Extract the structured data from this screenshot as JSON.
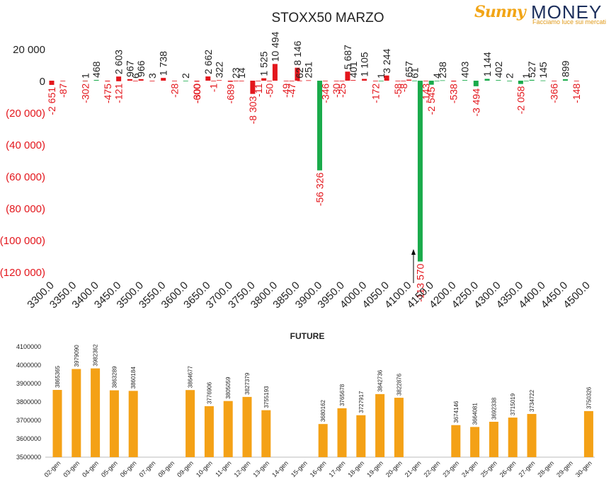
{
  "logo": {
    "part1": "Sunny",
    "part2": "MONEY",
    "tagline": "Facciamo luce sui mercati"
  },
  "colors": {
    "positive": "#1aab4b",
    "negative": "#e3161c",
    "label_negative": "#e3161c",
    "label_positive": "#222222",
    "future_bar": "#f4a116"
  },
  "chart_data": [
    {
      "type": "bar",
      "title": "STOXX50 MARZO",
      "ylim": [
        -120000,
        25000
      ],
      "yticks": [
        20000,
        0,
        -20000,
        -40000,
        -60000,
        -80000,
        -100000,
        -120000
      ],
      "ytick_labels": [
        "20 000",
        "0",
        "(20 000)",
        "(40 000)",
        "(60 000)",
        "(80 000)",
        "(100 000)",
        "(120 000)"
      ],
      "xtick_labels": [
        "3300.0",
        "3350.0",
        "3400.0",
        "3450.0",
        "3500.0",
        "3550.0",
        "3600.0",
        "3650.0",
        "3700.0",
        "3750.0",
        "3800.0",
        "3850.0",
        "3900.0",
        "3950.0",
        "4000.0",
        "4050.0",
        "4100.0",
        "4150.0",
        "4200.0",
        "4250.0",
        "4300.0",
        "4350.0",
        "4400.0",
        "4450.0",
        "4500.0"
      ],
      "xmin": 3300,
      "xmax": 4500,
      "bars": [
        {
          "x": 3300,
          "v": -2651,
          "label": "-2 651"
        },
        {
          "x": 3325,
          "v": -87,
          "label": "-87"
        },
        {
          "x": 3375,
          "v": 1,
          "label": "1"
        },
        {
          "x": 3375,
          "v": -302,
          "label": "-302"
        },
        {
          "x": 3400,
          "v": 468,
          "label": "468"
        },
        {
          "x": 3425,
          "v": -475,
          "label": "-475"
        },
        {
          "x": 3450,
          "v": -121,
          "label": "-121"
        },
        {
          "x": 3450,
          "v": 2603,
          "label": "2 603"
        },
        {
          "x": 3475,
          "v": 967,
          "label": "967"
        },
        {
          "x": 3487.5,
          "v": 6,
          "label": "6"
        },
        {
          "x": 3500,
          "v": 966,
          "label": "966"
        },
        {
          "x": 3525,
          "v": 3,
          "label": "3"
        },
        {
          "x": 3550,
          "v": 1738,
          "label": "1 738"
        },
        {
          "x": 3575,
          "v": -28,
          "label": "-28"
        },
        {
          "x": 3600,
          "v": 2,
          "label": "2"
        },
        {
          "x": 3625,
          "v": -300,
          "label": "-300"
        },
        {
          "x": 3625,
          "v": -600,
          "label": "-600"
        },
        {
          "x": 3650,
          "v": 2662,
          "label": "2 662"
        },
        {
          "x": 3662.5,
          "v": -1,
          "label": "-1"
        },
        {
          "x": 3675,
          "v": 322,
          "label": "322"
        },
        {
          "x": 3700,
          "v": -689,
          "label": "-689"
        },
        {
          "x": 3712.5,
          "v": 23,
          "label": "23"
        },
        {
          "x": 3725,
          "v": 14,
          "label": "14"
        },
        {
          "x": 3750,
          "v": -8303,
          "label": "-8 303"
        },
        {
          "x": 3762.5,
          "v": -11,
          "label": "-11"
        },
        {
          "x": 3775,
          "v": 1525,
          "label": "1 525"
        },
        {
          "x": 3787.5,
          "v": -50,
          "label": "-50"
        },
        {
          "x": 3800,
          "v": 10494,
          "label": "10 494"
        },
        {
          "x": 3825,
          "v": -49,
          "label": "-49"
        },
        {
          "x": 3837.5,
          "v": -47,
          "label": "-47"
        },
        {
          "x": 3850,
          "v": 8146,
          "label": "8 146"
        },
        {
          "x": 3855,
          "v": 62,
          "label": "62"
        },
        {
          "x": 3875,
          "v": 251,
          "label": "251"
        },
        {
          "x": 3900,
          "v": -56326,
          "label": "-56 326"
        },
        {
          "x": 3912.5,
          "v": -346,
          "label": "-346"
        },
        {
          "x": 3937.5,
          "v": -30,
          "label": "-30"
        },
        {
          "x": 3950,
          "v": -25,
          "label": "-25"
        },
        {
          "x": 3962.5,
          "v": 5687,
          "label": "5 687"
        },
        {
          "x": 3975,
          "v": 401,
          "label": "401"
        },
        {
          "x": 4000,
          "v": 1105,
          "label": "1 105"
        },
        {
          "x": 4025,
          "v": -172,
          "label": "-172"
        },
        {
          "x": 4037.5,
          "v": 1,
          "label": "1"
        },
        {
          "x": 4050,
          "v": 3244,
          "label": "3 244"
        },
        {
          "x": 4075,
          "v": -58,
          "label": "-58"
        },
        {
          "x": 4087.5,
          "v": -8,
          "label": "-8"
        },
        {
          "x": 4100,
          "v": 657,
          "label": "657"
        },
        {
          "x": 4112.5,
          "v": 61,
          "label": "61"
        },
        {
          "x": 4125,
          "v": -113570,
          "label": "-113 570"
        },
        {
          "x": 4137.5,
          "v": -143,
          "label": "-143"
        },
        {
          "x": 4150,
          "v": -2545,
          "label": "-2 545"
        },
        {
          "x": 4162.5,
          "v": 4,
          "label": "4"
        },
        {
          "x": 4175,
          "v": 238,
          "label": "238"
        },
        {
          "x": 4200,
          "v": -538,
          "label": "-538"
        },
        {
          "x": 4225,
          "v": 403,
          "label": "403"
        },
        {
          "x": 4250,
          "v": -3494,
          "label": "-3 494"
        },
        {
          "x": 4275,
          "v": 1144,
          "label": "1 144"
        },
        {
          "x": 4300,
          "v": 402,
          "label": "402"
        },
        {
          "x": 4325,
          "v": 2,
          "label": "2"
        },
        {
          "x": 4350,
          "v": -2058,
          "label": "-2 058"
        },
        {
          "x": 4362.5,
          "v": 1,
          "label": "1"
        },
        {
          "x": 4375,
          "v": 527,
          "label": "527"
        },
        {
          "x": 4400,
          "v": 145,
          "label": "145"
        },
        {
          "x": 4425,
          "v": -366,
          "label": "-366"
        },
        {
          "x": 4450,
          "v": 899,
          "label": "899"
        },
        {
          "x": 4475,
          "v": -148,
          "label": "-148"
        }
      ]
    },
    {
      "type": "bar",
      "title": "FUTURE",
      "ylim": [
        3500000,
        4100000
      ],
      "yticks": [
        3500000,
        3600000,
        3700000,
        3800000,
        3900000,
        4000000,
        4100000
      ],
      "ytick_labels": [
        "3500000",
        "3600000",
        "3700000",
        "3800000",
        "3900000",
        "4000000",
        "4100000"
      ],
      "categories": [
        "02-gen",
        "03-gen",
        "04-gen",
        "05-gen",
        "06-gen",
        "07-gen",
        "08-gen",
        "09-gen",
        "10-gen",
        "11-gen",
        "12-gen",
        "13-gen",
        "14-gen",
        "15-gen",
        "16-gen",
        "17-gen",
        "18-gen",
        "19-gen",
        "20-gen",
        "21-gen",
        "22-gen",
        "23-gen",
        "24-gen",
        "25-gen",
        "26-gen",
        "27-gen",
        "28-gen",
        "29-gen",
        "30-gen"
      ],
      "values": [
        3865365,
        3979090,
        3982362,
        3863289,
        3860184,
        null,
        null,
        3864677,
        3776906,
        3805059,
        3827379,
        3755193,
        null,
        null,
        3680162,
        3765678,
        3727917,
        3842736,
        3822876,
        null,
        null,
        3674146,
        3664081,
        3692338,
        3715019,
        3734722,
        null,
        null,
        3750326
      ]
    }
  ]
}
